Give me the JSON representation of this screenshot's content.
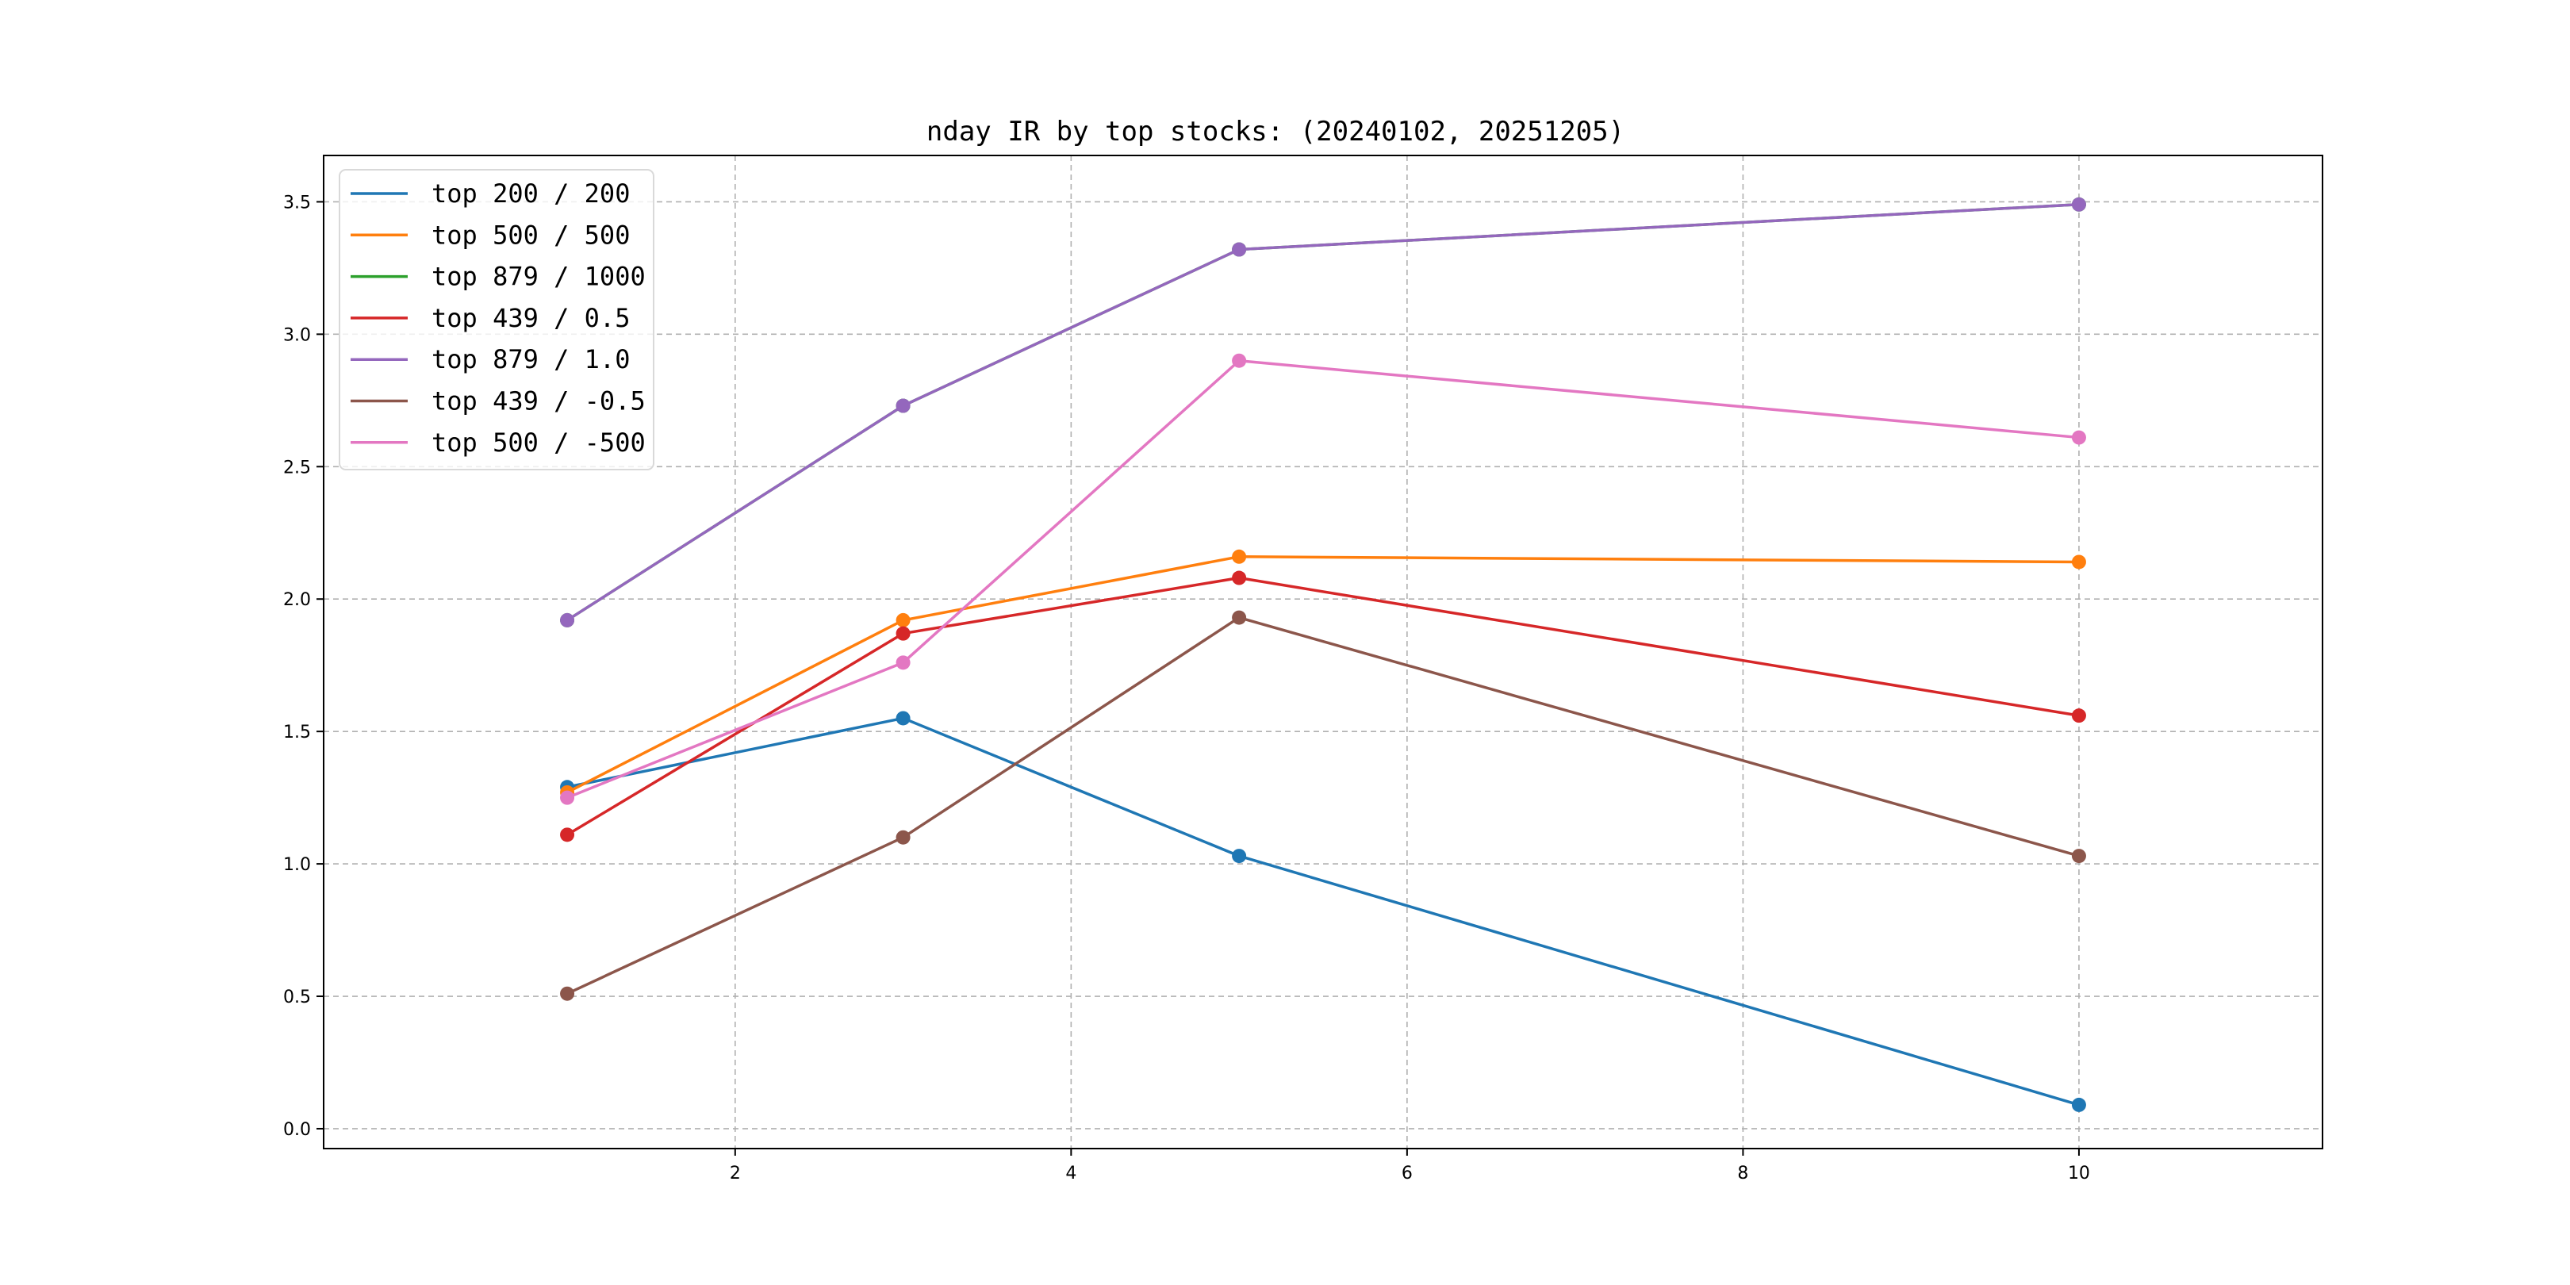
{
  "chart_data": {
    "type": "line",
    "title": "nday IR by top stocks: (20240102, 20251205)",
    "xlabel": "",
    "ylabel": "",
    "x": [
      1,
      3,
      5,
      10
    ],
    "xlim": [
      -0.45,
      11.45
    ],
    "ylim": [
      -0.075,
      3.675
    ],
    "xticks": [
      2,
      4,
      6,
      8,
      10
    ],
    "yticks": [
      0.0,
      0.5,
      1.0,
      1.5,
      2.0,
      2.5,
      3.0,
      3.5
    ],
    "xtick_labels": [
      "2",
      "4",
      "6",
      "8",
      "10"
    ],
    "ytick_labels": [
      "0.0",
      "0.5",
      "1.0",
      "1.5",
      "2.0",
      "2.5",
      "3.0",
      "3.5"
    ],
    "grid": true,
    "legend_position": "top-left",
    "markers": true,
    "series": [
      {
        "name": "top 200 / 200",
        "color": "#1f77b4",
        "values": [
          1.29,
          1.55,
          1.03,
          0.09
        ]
      },
      {
        "name": "top 500 / 500",
        "color": "#ff7f0e",
        "values": [
          1.27,
          1.92,
          2.16,
          2.14
        ]
      },
      {
        "name": "top 879 / 1000",
        "color": "#2ca02c",
        "values": [
          1.92,
          2.73,
          3.32,
          3.49
        ]
      },
      {
        "name": "top 439 / 0.5",
        "color": "#d62728",
        "values": [
          1.11,
          1.87,
          2.08,
          1.56
        ]
      },
      {
        "name": "top 879 / 1.0",
        "color": "#9467bd",
        "values": [
          1.92,
          2.73,
          3.32,
          3.49
        ]
      },
      {
        "name": "top 439 / -0.5",
        "color": "#8c564b",
        "values": [
          0.51,
          1.1,
          1.93,
          1.03
        ]
      },
      {
        "name": "top 500 / -500",
        "color": "#e377c2",
        "values": [
          1.25,
          1.76,
          2.9,
          2.61
        ]
      }
    ]
  }
}
